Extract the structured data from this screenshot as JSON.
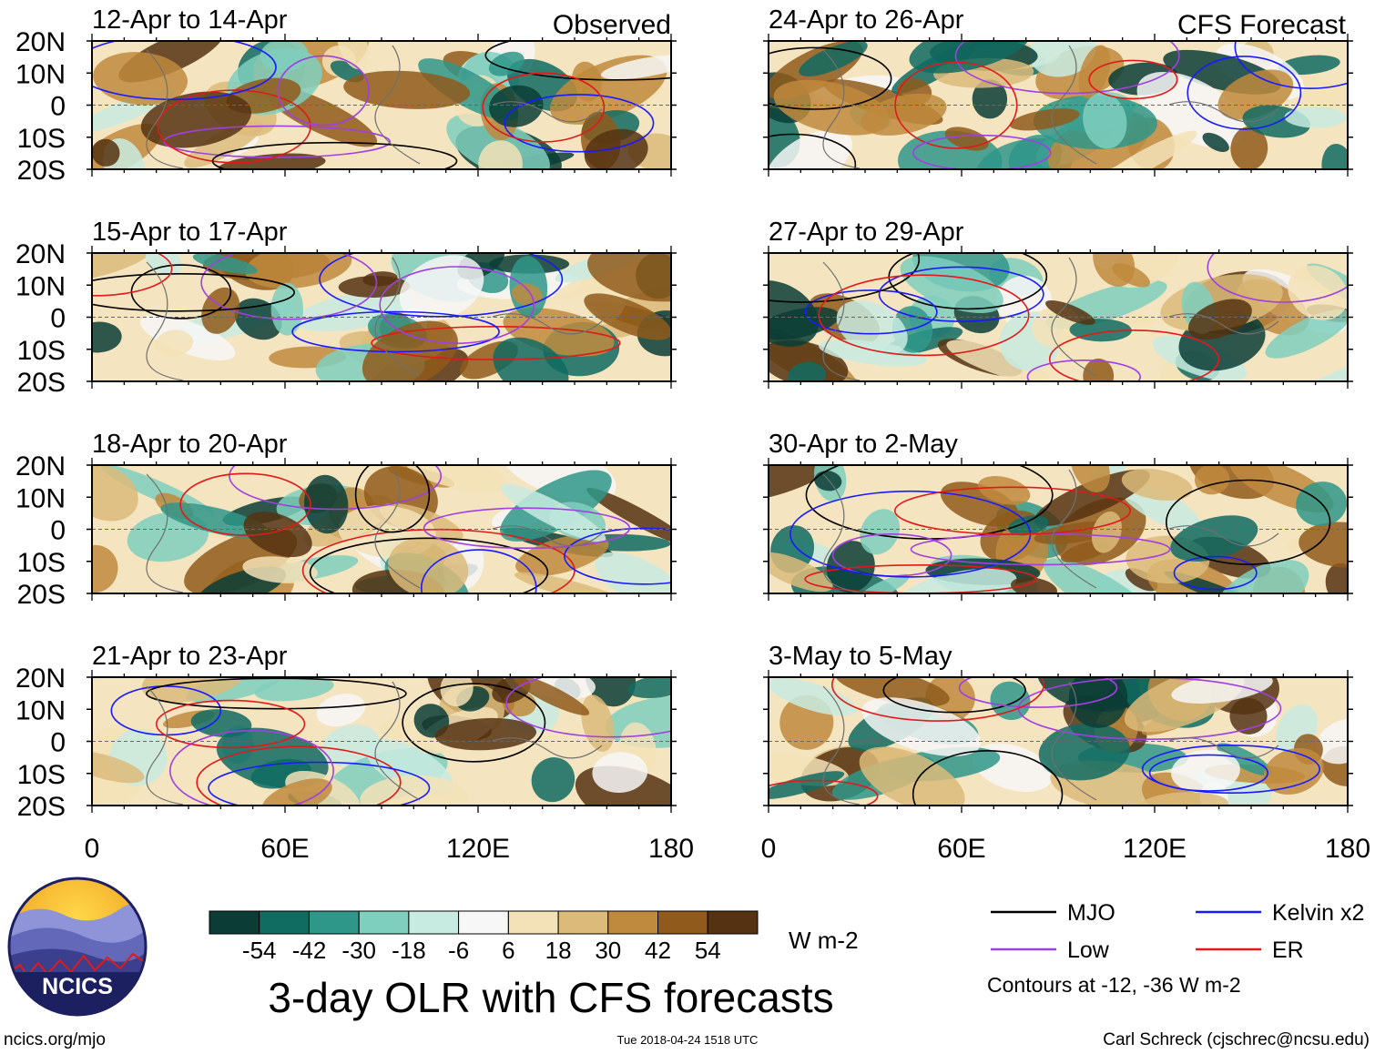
{
  "chart_data": {
    "type": "heatmap",
    "title": "3-day OLR with CFS forecasts",
    "variable": "OLR anomaly",
    "colorbar": {
      "units": "W m-2",
      "tick_labels": [
        "-54",
        "-42",
        "-30",
        "-18",
        "-6",
        "6",
        "18",
        "30",
        "42",
        "54"
      ],
      "colors": [
        "#0b3d36",
        "#106b61",
        "#2f968a",
        "#7fcfbe",
        "#c8ebe1",
        "#f7f7f7",
        "#f3e2b7",
        "#dcbb7a",
        "#bf8a3d",
        "#8f5a1b",
        "#553212"
      ]
    },
    "axes": {
      "x_tick_labels": [
        "0",
        "60E",
        "120E",
        "180"
      ],
      "x_range": [
        0,
        180
      ],
      "y_tick_labels": [
        "20N",
        "10N",
        "0",
        "10S",
        "20S"
      ],
      "y_range": [
        -20,
        20
      ]
    },
    "legend": {
      "placement": "bottom-right",
      "entries": [
        {
          "label": "MJO",
          "color": "#000000"
        },
        {
          "label": "Kelvin x2",
          "color": "#1a1aff"
        },
        {
          "label": "Low",
          "color": "#a040e0"
        },
        {
          "label": "ER",
          "color": "#e01a1a"
        }
      ],
      "note": "Contours at -12, -36 W m-2"
    },
    "panels_left_heading": "Observed",
    "panels_right_heading": "CFS Forecast",
    "panels": [
      {
        "period": "12-Apr to 14-Apr",
        "side": "left",
        "row": 0
      },
      {
        "period": "15-Apr to 17-Apr",
        "side": "left",
        "row": 1
      },
      {
        "period": "18-Apr to 20-Apr",
        "side": "left",
        "row": 2
      },
      {
        "period": "21-Apr to 23-Apr",
        "side": "left",
        "row": 3
      },
      {
        "period": "24-Apr to 26-Apr",
        "side": "right",
        "row": 0
      },
      {
        "period": "27-Apr to 29-Apr",
        "side": "right",
        "row": 1
      },
      {
        "period": "30-Apr to 2-May",
        "side": "right",
        "row": 2
      },
      {
        "period": "3-May to 5-May",
        "side": "right",
        "row": 3
      }
    ]
  },
  "logo": {
    "text": "NCICS"
  },
  "footer": {
    "left": "ncics.org/mjo",
    "center": "Tue 2018-04-24 1518 UTC",
    "right": "Carl Schreck (cjschrec@ncsu.edu)"
  }
}
